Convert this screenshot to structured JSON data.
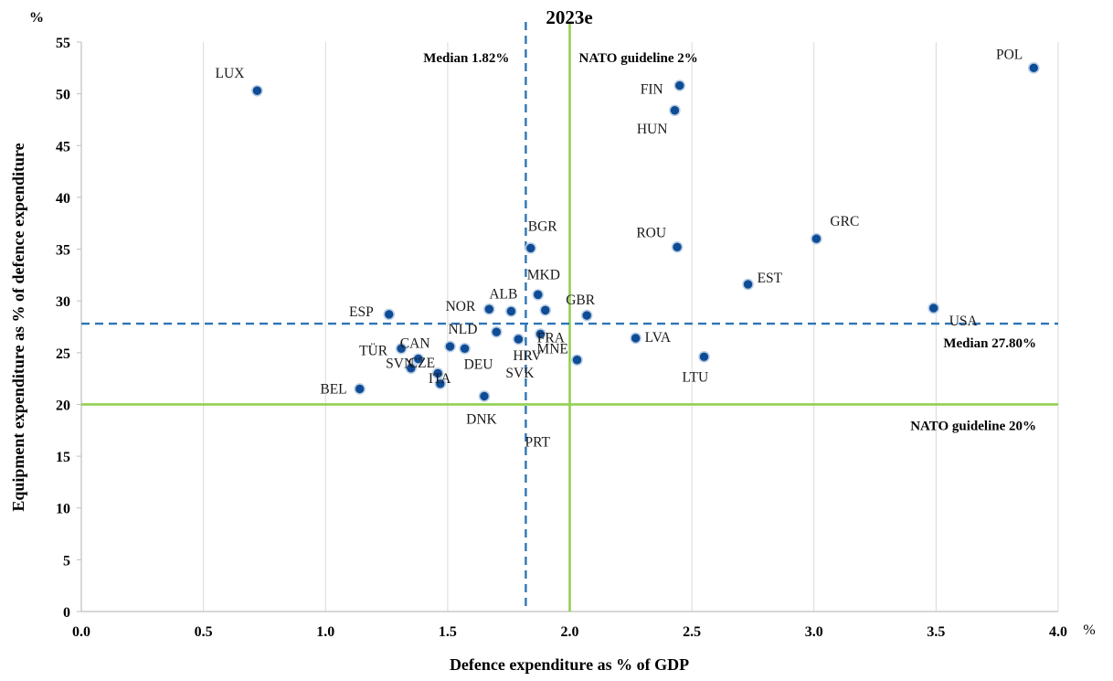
{
  "chart_data": {
    "type": "scatter",
    "title": "2023e",
    "xlabel": "Defence expenditure as % of GDP",
    "ylabel": "Equipment expenditure as % of defence expenditure",
    "x_unit": "%",
    "y_unit": "%",
    "xlim": [
      0,
      4
    ],
    "ylim": [
      0,
      55
    ],
    "x_ticks": [
      "0.0",
      "0.5",
      "1.0",
      "1.5",
      "2.0",
      "2.5",
      "3.0",
      "3.5",
      "4.0"
    ],
    "y_ticks": [
      "0",
      "5",
      "10",
      "15",
      "20",
      "25",
      "30",
      "35",
      "40",
      "45",
      "50",
      "55"
    ],
    "grid": "vertical",
    "points": [
      {
        "label": "LUX",
        "x": 0.72,
        "y": 50.3
      },
      {
        "label": "POL",
        "x": 3.9,
        "y": 52.5
      },
      {
        "label": "FIN",
        "x": 2.45,
        "y": 50.8
      },
      {
        "label": "HUN",
        "x": 2.43,
        "y": 48.4
      },
      {
        "label": "BGR",
        "x": 1.84,
        "y": 35.1
      },
      {
        "label": "ROU",
        "x": 2.44,
        "y": 35.2
      },
      {
        "label": "GRC",
        "x": 3.01,
        "y": 36.0
      },
      {
        "label": "EST",
        "x": 2.73,
        "y": 31.6
      },
      {
        "label": "MKD",
        "x": 1.87,
        "y": 30.6
      },
      {
        "label": "USA",
        "x": 3.49,
        "y": 29.3
      },
      {
        "label": "ESP",
        "x": 1.26,
        "y": 28.7
      },
      {
        "label": "NOR",
        "x": 1.67,
        "y": 29.2
      },
      {
        "label": "ALB",
        "x": 1.76,
        "y": 29.0
      },
      {
        "label": "GBR",
        "x": 2.07,
        "y": 28.6
      },
      {
        "label": "FRA",
        "x": 1.9,
        "y": 29.1
      },
      {
        "label": "TÜR",
        "x": 1.31,
        "y": 25.4
      },
      {
        "label": "CAN",
        "x": 1.38,
        "y": 24.4
      },
      {
        "label": "NLD",
        "x": 1.51,
        "y": 25.6
      },
      {
        "label": "DEU",
        "x": 1.57,
        "y": 25.4
      },
      {
        "label": "HRV",
        "x": 1.7,
        "y": 27.0
      },
      {
        "label": "MNE",
        "x": 1.88,
        "y": 26.8
      },
      {
        "label": "LVA",
        "x": 2.27,
        "y": 26.4
      },
      {
        "label": "CZE",
        "x": 1.35,
        "y": 23.5
      },
      {
        "label": "SVK",
        "x": 1.79,
        "y": 26.3
      },
      {
        "label": "LTU",
        "x": 2.55,
        "y": 24.6
      },
      {
        "label": "SVN",
        "x": 1.46,
        "y": 23.0
      },
      {
        "label": "ITA",
        "x": 1.47,
        "y": 22.0
      },
      {
        "label": "BEL",
        "x": 1.14,
        "y": 21.5
      },
      {
        "label": "PRT",
        "x": 2.03,
        "y": 24.3
      },
      {
        "label": "DNK",
        "x": 1.65,
        "y": 20.8
      }
    ],
    "reference_lines": [
      {
        "axis": "x",
        "value": 1.82,
        "label": "Median 1.82%",
        "style": "dashed",
        "color": "#2e75b6"
      },
      {
        "axis": "x",
        "value": 2.0,
        "label": "NATO guideline 2%",
        "style": "solid",
        "color": "#92d050"
      },
      {
        "axis": "y",
        "value": 27.8,
        "label": "Median 27.80%",
        "style": "dashed",
        "color": "#2e75b6"
      },
      {
        "axis": "y",
        "value": 20,
        "label": "NATO guideline 20%",
        "style": "solid",
        "color": "#92d050"
      }
    ],
    "colors": {
      "point_fill": "#0f4c96",
      "point_stroke": "#b9cde3",
      "grid": "#d9d9d9",
      "axis": "#bfbfbf"
    }
  }
}
